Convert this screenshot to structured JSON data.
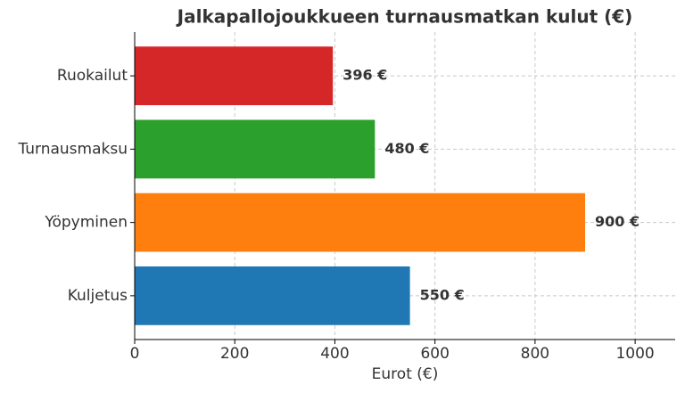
{
  "chart_data": {
    "type": "bar",
    "orientation": "horizontal",
    "title": "Jalkapallojoukkueen turnausmatkan kulut (€)",
    "xlabel": "Eurot (€)",
    "categories": [
      "Kuljetus",
      "Yöpyminen",
      "Turnausmaksu",
      "Ruokailut"
    ],
    "values": [
      550,
      900,
      480,
      396
    ],
    "value_labels": [
      "550 €",
      "900 €",
      "480 €",
      "396 €"
    ],
    "colors": [
      "#1f77b4",
      "#ff7f0e",
      "#2ca02c",
      "#d62728"
    ],
    "xlim": [
      0,
      1080
    ],
    "xticks": [
      0,
      200,
      400,
      600,
      800,
      1000
    ],
    "grid": true
  }
}
